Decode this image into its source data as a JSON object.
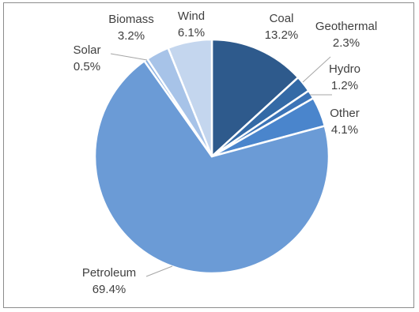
{
  "chart_data": {
    "type": "pie",
    "title": "",
    "start_angle_deg": 0,
    "direction": "clockwise",
    "slices": [
      {
        "label": "Coal",
        "value": 13.2,
        "value_label": "13.2%",
        "color": "#2e5a8c"
      },
      {
        "label": "Geothermal",
        "value": 2.3,
        "value_label": "2.3%",
        "color": "#346aa6"
      },
      {
        "label": "Hydro",
        "value": 1.2,
        "value_label": "1.2%",
        "color": "#3c74b7"
      },
      {
        "label": "Other",
        "value": 4.1,
        "value_label": "4.1%",
        "color": "#4a85cc"
      },
      {
        "label": "Petroleum",
        "value": 69.4,
        "value_label": "69.4%",
        "color": "#6b9bd6"
      },
      {
        "label": "Solar",
        "value": 0.5,
        "value_label": "0.5%",
        "color": "#8fb3e2"
      },
      {
        "label": "Biomass",
        "value": 3.2,
        "value_label": "3.2%",
        "color": "#a7c3e8"
      },
      {
        "label": "Wind",
        "value": 6.1,
        "value_label": "6.1%",
        "color": "#c4d6ee"
      }
    ],
    "legend": "none",
    "data_labels": "outside-with-leader-lines"
  }
}
